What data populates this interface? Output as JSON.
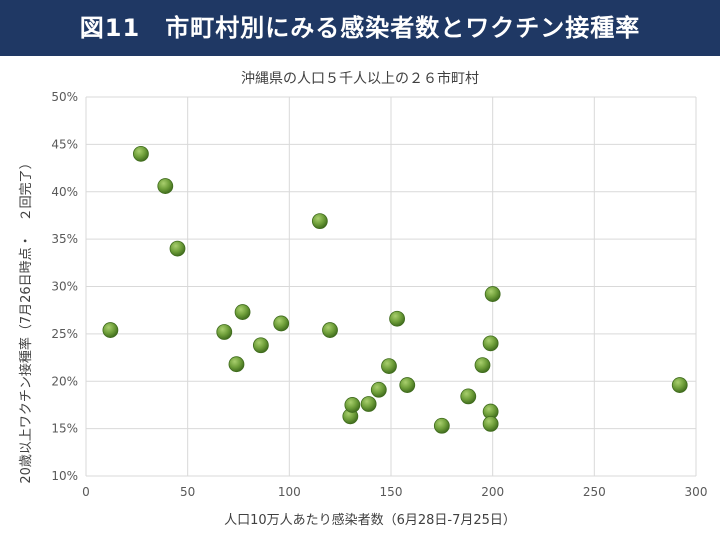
{
  "header": {
    "title": "図11　市町村別にみる感染者数とワクチン接種率"
  },
  "colors": {
    "header_bg": "#1f3864",
    "point": "#5b8f2f",
    "grid": "#d9d9d9"
  },
  "chart_data": {
    "type": "scatter",
    "title": "沖縄県の人口５千人以上の２６市町村",
    "xlabel": "人口10万人あたり感染者数（6月28日-7月25日）",
    "ylabel": "20歳以上２回完了（7月26日時点・２回完了）",
    "ylabel_display": "20歳以上ワクチン接種率（7月26日時点・　２回完了）",
    "xlim": [
      0,
      300
    ],
    "ylim": [
      10,
      50
    ],
    "xticks": [
      0,
      50,
      100,
      150,
      200,
      250,
      300
    ],
    "yticks": [
      10,
      15,
      20,
      25,
      30,
      35,
      40,
      45,
      50
    ],
    "ytick_labels": [
      "10%",
      "15%",
      "20%",
      "25%",
      "30%",
      "35%",
      "40%",
      "45%",
      "50%"
    ],
    "grid": true,
    "points": [
      {
        "x": 12,
        "y": 25.4
      },
      {
        "x": 27,
        "y": 44.0
      },
      {
        "x": 39,
        "y": 40.6
      },
      {
        "x": 45,
        "y": 34.0
      },
      {
        "x": 68,
        "y": 25.2
      },
      {
        "x": 74,
        "y": 21.8
      },
      {
        "x": 77,
        "y": 27.3
      },
      {
        "x": 86,
        "y": 23.8
      },
      {
        "x": 96,
        "y": 26.1
      },
      {
        "x": 115,
        "y": 36.9
      },
      {
        "x": 120,
        "y": 25.4
      },
      {
        "x": 130,
        "y": 16.3
      },
      {
        "x": 131,
        "y": 17.5
      },
      {
        "x": 139,
        "y": 17.6
      },
      {
        "x": 144,
        "y": 19.1
      },
      {
        "x": 149,
        "y": 21.6
      },
      {
        "x": 153,
        "y": 26.6
      },
      {
        "x": 158,
        "y": 19.6
      },
      {
        "x": 175,
        "y": 15.3
      },
      {
        "x": 188,
        "y": 18.4
      },
      {
        "x": 195,
        "y": 21.7
      },
      {
        "x": 199,
        "y": 24.0
      },
      {
        "x": 200,
        "y": 29.2
      },
      {
        "x": 199,
        "y": 16.8
      },
      {
        "x": 199,
        "y": 15.5
      },
      {
        "x": 292,
        "y": 19.6
      }
    ]
  }
}
